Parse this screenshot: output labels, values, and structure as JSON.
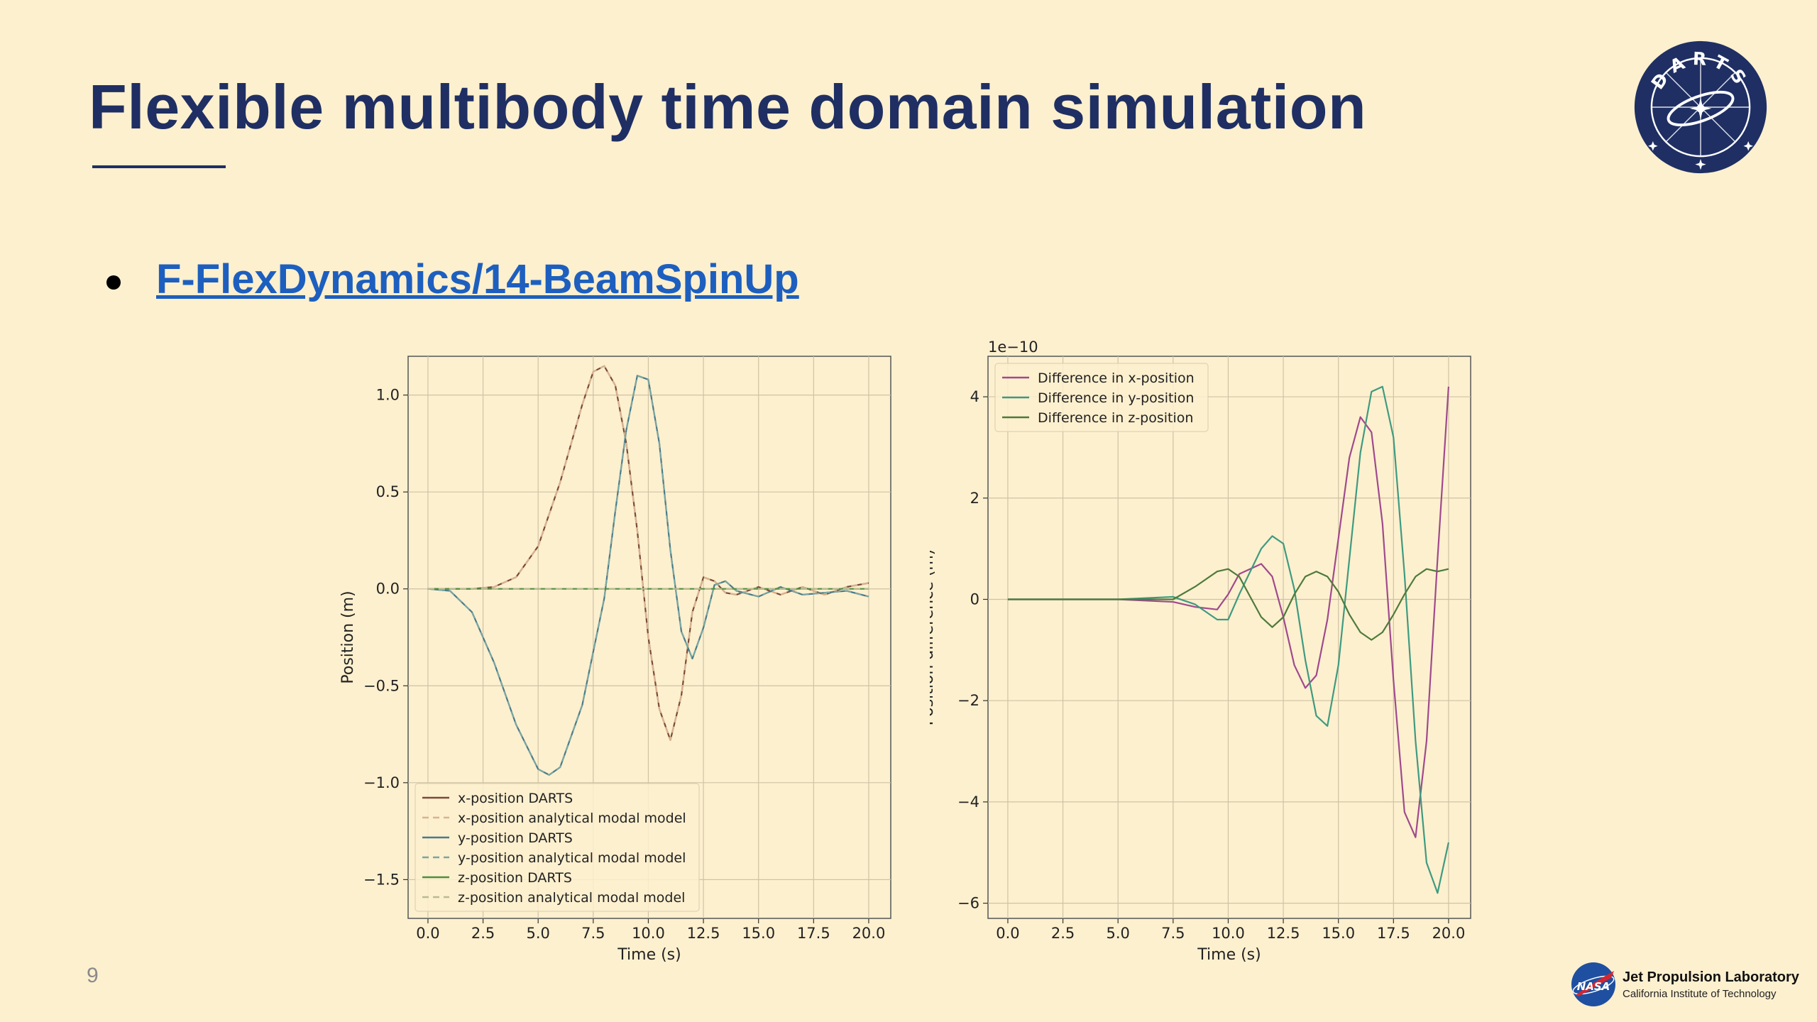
{
  "slide": {
    "title": "Flexible multibody time domain simulation",
    "bullet_link": "F-FlexDynamics/14-BeamSpinUp",
    "page_number": "9",
    "darts_logo_text": "DARTS",
    "footer": {
      "org_name": "Jet Propulsion Laboratory",
      "org_sub": "California Institute of Technology",
      "nasa_text": "NASA"
    }
  },
  "colors": {
    "background": "#fdf0cf",
    "title": "#1f2f63",
    "link": "#1d5fbf",
    "x_series": "#7a4a3a",
    "x_series_dashed": "#d9b48f",
    "y_series": "#4a7a8a",
    "y_series_dashed": "#7aa6a0",
    "z_series": "#4f8f3f",
    "z_series_dashed": "#b9bb92",
    "diff_x": "#a04a8c",
    "diff_y": "#3f9a80",
    "diff_z": "#4e7a3a"
  },
  "chart_data": [
    {
      "type": "line",
      "title": "",
      "xlabel": "Time (s)",
      "ylabel": "Position (m)",
      "xlim": [
        -0.9,
        21.0
      ],
      "ylim": [
        -1.7,
        1.2
      ],
      "xticks": [
        "0.0",
        "2.5",
        "5.0",
        "7.5",
        "10.0",
        "12.5",
        "15.0",
        "17.5",
        "20.0"
      ],
      "yticks": [
        "1.0",
        "0.5",
        "0.0",
        "−0.5",
        "−1.0",
        "−1.5"
      ],
      "grid": true,
      "legend_position": "lower-left",
      "series": [
        {
          "name": "x-position DARTS",
          "style": "solid",
          "color": "#7a4a3a",
          "x": [
            0,
            1,
            2,
            3,
            4,
            5,
            6,
            7,
            7.5,
            8,
            8.5,
            9,
            9.5,
            10,
            10.5,
            11,
            11.5,
            12,
            12.5,
            13,
            13.5,
            14,
            15,
            16,
            17,
            18,
            19,
            20
          ],
          "y": [
            0,
            0,
            0,
            0.01,
            0.06,
            0.22,
            0.55,
            0.95,
            1.12,
            1.15,
            1.05,
            0.75,
            0.3,
            -0.25,
            -0.62,
            -0.78,
            -0.55,
            -0.12,
            0.06,
            0.04,
            -0.02,
            -0.03,
            0.01,
            -0.03,
            0.01,
            -0.03,
            0.01,
            0.03
          ]
        },
        {
          "name": "x-position analytical modal model",
          "style": "dashed",
          "color": "#d9b48f",
          "x": [
            0,
            1,
            2,
            3,
            4,
            5,
            6,
            7,
            7.5,
            8,
            8.5,
            9,
            9.5,
            10,
            10.5,
            11,
            11.5,
            12,
            12.5,
            13,
            13.5,
            14,
            15,
            16,
            17,
            18,
            19,
            20
          ],
          "y": [
            0,
            0,
            0,
            0.01,
            0.06,
            0.22,
            0.55,
            0.95,
            1.12,
            1.15,
            1.05,
            0.75,
            0.3,
            -0.25,
            -0.62,
            -0.78,
            -0.55,
            -0.12,
            0.06,
            0.04,
            -0.02,
            -0.03,
            0.01,
            -0.03,
            0.01,
            -0.03,
            0.01,
            0.03
          ]
        },
        {
          "name": "y-position DARTS",
          "style": "solid",
          "color": "#4a7a8a",
          "x": [
            0,
            1,
            2,
            3,
            4,
            5,
            5.5,
            6,
            7,
            8,
            8.5,
            9,
            9.5,
            10,
            10.5,
            11,
            11.5,
            12,
            12.5,
            13,
            13.5,
            14,
            15,
            16,
            17,
            18,
            19,
            20
          ],
          "y": [
            0,
            -0.01,
            -0.12,
            -0.38,
            -0.7,
            -0.93,
            -0.96,
            -0.92,
            -0.6,
            -0.05,
            0.4,
            0.82,
            1.1,
            1.08,
            0.75,
            0.2,
            -0.22,
            -0.36,
            -0.2,
            0.02,
            0.04,
            -0.01,
            -0.04,
            0.01,
            -0.03,
            -0.02,
            -0.01,
            -0.04
          ]
        },
        {
          "name": "y-position analytical modal model",
          "style": "dashed",
          "color": "#7aa6a0",
          "x": [
            0,
            1,
            2,
            3,
            4,
            5,
            5.5,
            6,
            7,
            8,
            8.5,
            9,
            9.5,
            10,
            10.5,
            11,
            11.5,
            12,
            12.5,
            13,
            13.5,
            14,
            15,
            16,
            17,
            18,
            19,
            20
          ],
          "y": [
            0,
            -0.01,
            -0.12,
            -0.38,
            -0.7,
            -0.93,
            -0.96,
            -0.92,
            -0.6,
            -0.05,
            0.4,
            0.82,
            1.1,
            1.08,
            0.75,
            0.2,
            -0.22,
            -0.36,
            -0.2,
            0.02,
            0.04,
            -0.01,
            -0.04,
            0.01,
            -0.03,
            -0.02,
            -0.01,
            -0.04
          ]
        },
        {
          "name": "z-position DARTS",
          "style": "solid",
          "color": "#4f8f3f",
          "x": [
            0,
            5,
            10,
            15,
            20
          ],
          "y": [
            0,
            0,
            0,
            0,
            0
          ]
        },
        {
          "name": "z-position analytical modal model",
          "style": "dashed",
          "color": "#b9bb92",
          "x": [
            0,
            5,
            10,
            15,
            20
          ],
          "y": [
            0,
            0,
            0,
            0,
            0
          ]
        }
      ]
    },
    {
      "type": "line",
      "title": "",
      "xlabel": "Time (s)",
      "ylabel": "Position difference (m)",
      "offset_label": "1e−10",
      "xlim": [
        -0.9,
        21.0
      ],
      "ylim": [
        -6.3,
        4.8
      ],
      "xticks": [
        "0.0",
        "2.5",
        "5.0",
        "7.5",
        "10.0",
        "12.5",
        "15.0",
        "17.5",
        "20.0"
      ],
      "yticks": [
        "4",
        "2",
        "0",
        "−2",
        "−4",
        "−6"
      ],
      "grid": true,
      "legend_position": "upper-left",
      "series": [
        {
          "name": "Difference in x-position",
          "style": "solid",
          "color": "#a04a8c",
          "x": [
            0,
            5,
            7.5,
            8.5,
            9.5,
            10,
            10.5,
            11.5,
            12,
            12.5,
            13,
            13.5,
            14,
            14.5,
            15,
            15.5,
            16,
            16.5,
            17,
            17.5,
            18,
            18.5,
            19,
            19.5,
            20
          ],
          "y": [
            0,
            0,
            -0.05,
            -0.15,
            -0.2,
            0.1,
            0.5,
            0.7,
            0.45,
            -0.35,
            -1.3,
            -1.75,
            -1.5,
            -0.4,
            1.2,
            2.8,
            3.6,
            3.3,
            1.5,
            -1.6,
            -4.2,
            -4.7,
            -2.8,
            0.8,
            4.2
          ]
        },
        {
          "name": "Difference in y-position",
          "style": "solid",
          "color": "#3f9a80",
          "x": [
            0,
            5,
            7.5,
            8.5,
            9.5,
            10,
            10.5,
            11.5,
            12,
            12.5,
            13,
            13.5,
            14,
            14.5,
            15,
            15.5,
            16,
            16.5,
            17,
            17.5,
            18,
            18.5,
            19,
            19.5,
            20
          ],
          "y": [
            0,
            0,
            0.05,
            -0.1,
            -0.4,
            -0.4,
            0.1,
            1.0,
            1.25,
            1.1,
            0.2,
            -1.2,
            -2.3,
            -2.5,
            -1.3,
            0.8,
            2.9,
            4.1,
            4.2,
            3.2,
            0.5,
            -2.8,
            -5.2,
            -5.8,
            -4.8
          ]
        },
        {
          "name": "Difference in z-position",
          "style": "solid",
          "color": "#4e7a3a",
          "x": [
            0,
            5,
            7.5,
            8.5,
            9.5,
            10,
            10.5,
            11.5,
            12,
            12.5,
            13,
            13.5,
            14,
            14.5,
            15,
            15.5,
            16,
            16.5,
            17,
            17.5,
            18,
            18.5,
            19,
            19.5,
            20
          ],
          "y": [
            0,
            0,
            0,
            0.25,
            0.55,
            0.6,
            0.45,
            -0.35,
            -0.55,
            -0.35,
            0.1,
            0.45,
            0.55,
            0.45,
            0.15,
            -0.3,
            -0.65,
            -0.8,
            -0.65,
            -0.3,
            0.1,
            0.45,
            0.6,
            0.55,
            0.6
          ]
        }
      ]
    }
  ]
}
